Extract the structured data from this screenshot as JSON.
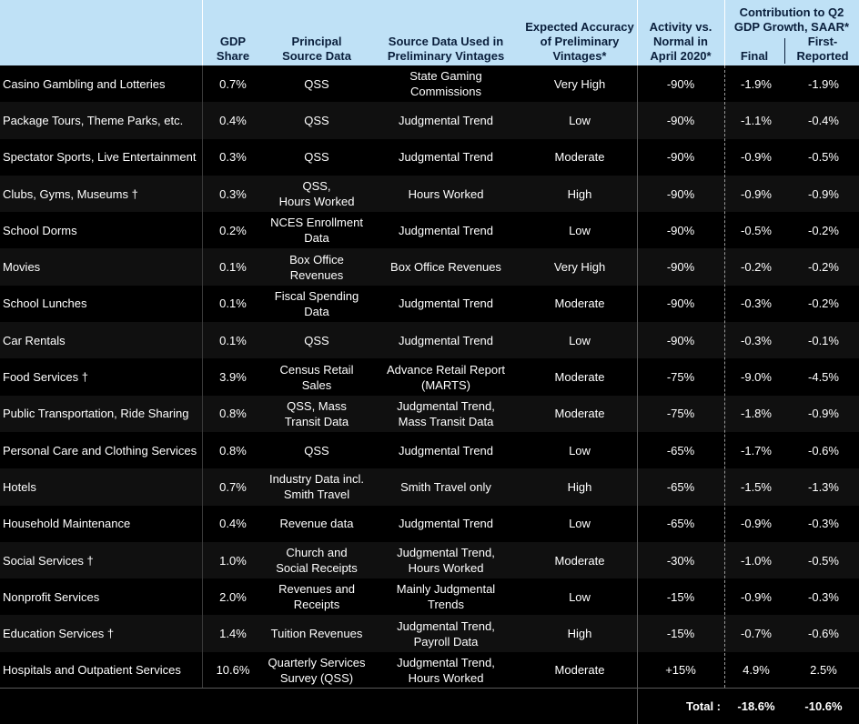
{
  "headers": {
    "gdp_share": "GDP\nShare",
    "principal_source": "Principal\nSource Data",
    "source_used": "Source Data Used in\nPreliminary Vintages",
    "expected_accuracy": "Expected Accuracy\nof Preliminary\nVintages*",
    "activity": "Activity vs.\nNormal in\nApril 2020*",
    "contribution": "Contribution to Q2\nGDP Growth, SAAR*",
    "final": "Final",
    "first_reported": "First-\nReported"
  },
  "rows": [
    {
      "name": "Casino Gambling and Lotteries",
      "share": "0.7%",
      "src": "QSS",
      "data": "State Gaming\nCommissions",
      "acc": "Very High",
      "act": "-90%",
      "fin": "-1.9%",
      "first": "-1.9%"
    },
    {
      "name": "Package Tours, Theme Parks, etc.",
      "share": "0.4%",
      "src": "QSS",
      "data": "Judgmental Trend",
      "acc": "Low",
      "act": "-90%",
      "fin": "-1.1%",
      "first": "-0.4%"
    },
    {
      "name": "Spectator Sports, Live Entertainment",
      "share": "0.3%",
      "src": "QSS",
      "data": "Judgmental Trend",
      "acc": "Moderate",
      "act": "-90%",
      "fin": "-0.9%",
      "first": "-0.5%"
    },
    {
      "name": "Clubs, Gyms, Museums †",
      "share": "0.3%",
      "src": "QSS,\nHours Worked",
      "data": "Hours Worked",
      "acc": "High",
      "act": "-90%",
      "fin": "-0.9%",
      "first": "-0.9%"
    },
    {
      "name": "School Dorms",
      "share": "0.2%",
      "src": "NCES Enrollment\nData",
      "data": "Judgmental Trend",
      "acc": "Low",
      "act": "-90%",
      "fin": "-0.5%",
      "first": "-0.2%"
    },
    {
      "name": "Movies",
      "share": "0.1%",
      "src": "Box Office\nRevenues",
      "data": "Box Office Revenues",
      "acc": "Very High",
      "act": "-90%",
      "fin": "-0.2%",
      "first": "-0.2%"
    },
    {
      "name": "School Lunches",
      "share": "0.1%",
      "src": "Fiscal Spending\nData",
      "data": "Judgmental Trend",
      "acc": "Moderate",
      "act": "-90%",
      "fin": "-0.3%",
      "first": "-0.2%"
    },
    {
      "name": "Car Rentals",
      "share": "0.1%",
      "src": "QSS",
      "data": "Judgmental Trend",
      "acc": "Low",
      "act": "-90%",
      "fin": "-0.3%",
      "first": "-0.1%"
    },
    {
      "name": "Food Services †",
      "share": "3.9%",
      "src": "Census Retail\nSales",
      "data": "Advance Retail Report\n(MARTS)",
      "acc": "Moderate",
      "act": "-75%",
      "fin": "-9.0%",
      "first": "-4.5%"
    },
    {
      "name": "Public Transportation, Ride Sharing",
      "share": "0.8%",
      "src": "QSS, Mass\nTransit Data",
      "data": "Judgmental Trend,\nMass Transit Data",
      "acc": "Moderate",
      "act": "-75%",
      "fin": "-1.8%",
      "first": "-0.9%"
    },
    {
      "name": "Personal Care and Clothing Services",
      "share": "0.8%",
      "src": "QSS",
      "data": "Judgmental Trend",
      "acc": "Low",
      "act": "-65%",
      "fin": "-1.7%",
      "first": "-0.6%"
    },
    {
      "name": "Hotels",
      "share": "0.7%",
      "src": "Industry Data incl.\nSmith Travel",
      "data": "Smith Travel only",
      "acc": "High",
      "act": "-65%",
      "fin": "-1.5%",
      "first": "-1.3%"
    },
    {
      "name": "Household Maintenance",
      "share": "0.4%",
      "src": "Revenue data",
      "data": "Judgmental Trend",
      "acc": "Low",
      "act": "-65%",
      "fin": "-0.9%",
      "first": "-0.3%"
    },
    {
      "name": "Social Services †",
      "share": "1.0%",
      "src": "Church and\nSocial Receipts",
      "data": "Judgmental Trend,\nHours Worked",
      "acc": "Moderate",
      "act": "-30%",
      "fin": "-1.0%",
      "first": "-0.5%"
    },
    {
      "name": "Nonprofit Services",
      "share": "2.0%",
      "src": "Revenues and\nReceipts",
      "data": "Mainly Judgmental\nTrends",
      "acc": "Low",
      "act": "-15%",
      "fin": "-0.9%",
      "first": "-0.3%"
    },
    {
      "name": "Education Services †",
      "share": "1.4%",
      "src": "Tuition Revenues",
      "data": "Judgmental Trend,\nPayroll Data",
      "acc": "High",
      "act": "-15%",
      "fin": "-0.7%",
      "first": "-0.6%"
    },
    {
      "name": "Hospitals and Outpatient Services",
      "share": "10.6%",
      "src": "Quarterly Services\nSurvey (QSS)",
      "data": "Judgmental Trend,\nHours Worked",
      "acc": "Moderate",
      "act": "+15%",
      "fin": "4.9%",
      "first": "2.5%"
    }
  ],
  "total": {
    "label": "Total :",
    "final": "-18.6%",
    "first": "-10.6%"
  }
}
